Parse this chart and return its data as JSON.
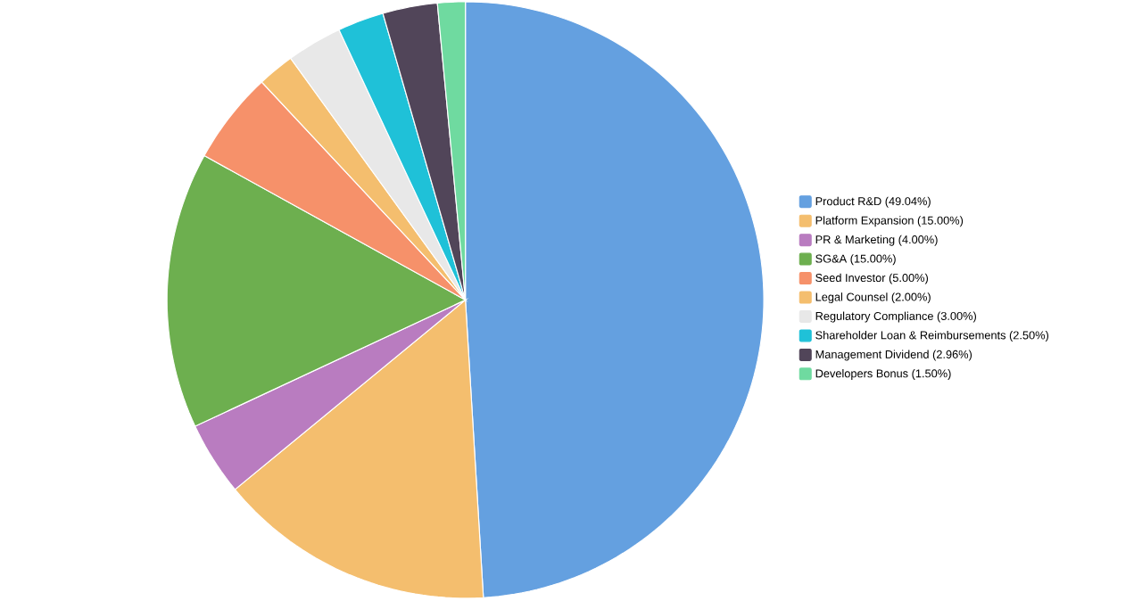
{
  "chart_data": {
    "type": "pie",
    "categories": [
      "Product R&D (49.04%)",
      "Platform Expansion (15.00%)",
      "PR & Marketing (4.00%)",
      "SG&A (15.00%)",
      "Seed Investor (5.00%)",
      "Legal Counsel (2.00%)",
      "Regulatory Compliance (3.00%)",
      "Shareholder Loan & Reimbursements (2.50%)",
      "Management Dividend (2.96%)",
      "Developers Bonus (1.50%)"
    ],
    "values": [
      49.04,
      15.0,
      4.0,
      15.0,
      5.0,
      2.0,
      3.0,
      2.5,
      2.96,
      1.5
    ],
    "colors": [
      "#64a0e0",
      "#f4be6e",
      "#b97cc0",
      "#6daf4f",
      "#f6916a",
      "#f4be6e",
      "#e8e8e8",
      "#1fc1d8",
      "#514559",
      "#6fdaa0"
    ],
    "legend": "right"
  }
}
